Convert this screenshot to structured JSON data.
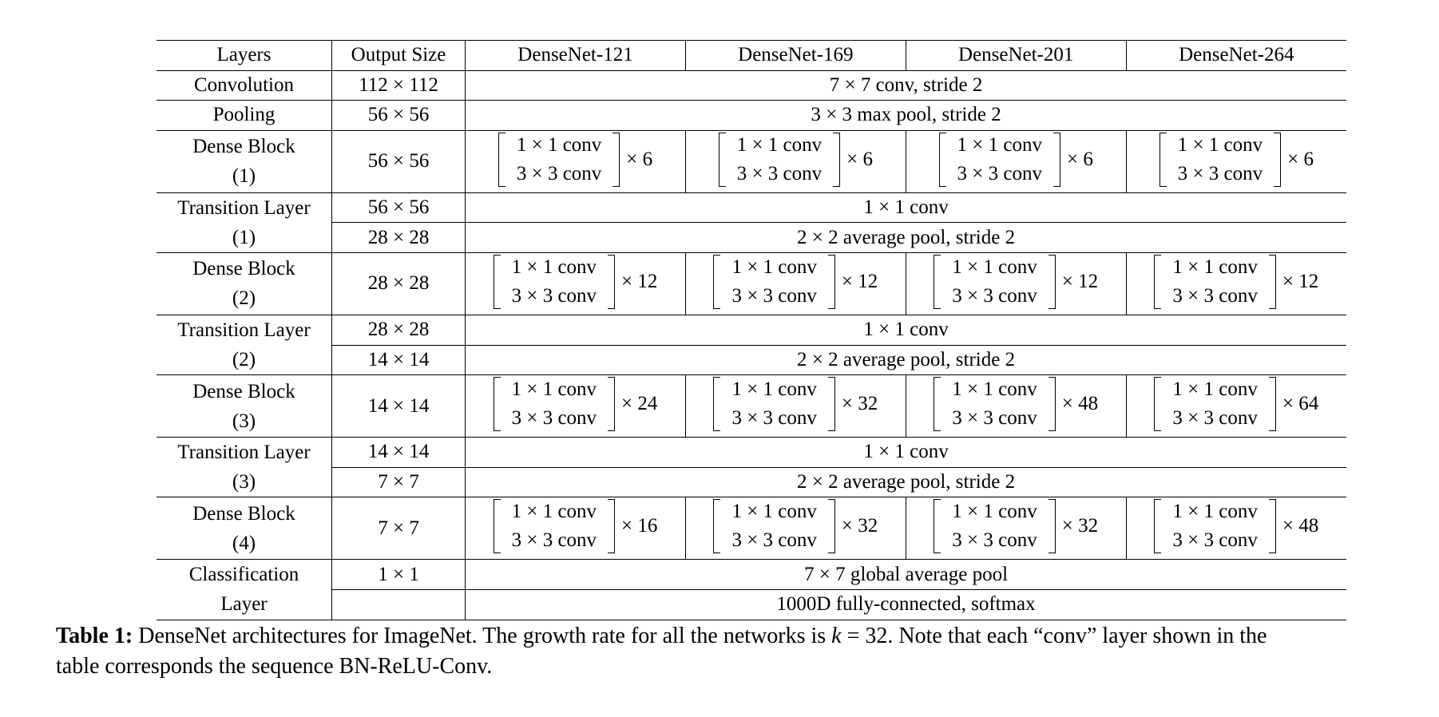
{
  "table": {
    "headers": [
      "Layers",
      "Output Size",
      "DenseNet-121",
      "DenseNet-169",
      "DenseNet-201",
      "DenseNet-264"
    ],
    "conv_layer": {
      "layer": "Convolution",
      "size": "112 × 112",
      "op": "7 × 7 conv, stride 2"
    },
    "pool_layer": {
      "layer": "Pooling",
      "size": "56 × 56",
      "op": "3 × 3 max pool, stride 2"
    },
    "block_line1": "1 × 1 conv",
    "block_line2": "3 × 3 conv",
    "dense_blocks": [
      {
        "name_l1": "Dense Block",
        "name_l2": "(1)",
        "size": "56 × 56",
        "reps": [
          "× 6",
          "× 6",
          "× 6",
          "× 6"
        ]
      },
      {
        "name_l1": "Dense Block",
        "name_l2": "(2)",
        "size": "28 × 28",
        "reps": [
          "× 12",
          "× 12",
          "× 12",
          "× 12"
        ]
      },
      {
        "name_l1": "Dense Block",
        "name_l2": "(3)",
        "size": "14 × 14",
        "reps": [
          "× 24",
          "× 32",
          "× 48",
          "× 64"
        ]
      },
      {
        "name_l1": "Dense Block",
        "name_l2": "(4)",
        "size": "7 × 7",
        "reps": [
          "× 16",
          "× 32",
          "× 32",
          "× 48"
        ]
      }
    ],
    "transitions": [
      {
        "name_l1": "Transition Layer",
        "name_l2": "(1)",
        "size1": "56 × 56",
        "op1": "1 × 1 conv",
        "size2": "28 × 28",
        "op2": "2 × 2 average pool, stride 2"
      },
      {
        "name_l1": "Transition Layer",
        "name_l2": "(2)",
        "size1": "28 × 28",
        "op1": "1 × 1 conv",
        "size2": "14 × 14",
        "op2": "2 × 2 average pool, stride 2"
      },
      {
        "name_l1": "Transition Layer",
        "name_l2": "(3)",
        "size1": "14 × 14",
        "op1": "1 × 1 conv",
        "size2": "7 × 7",
        "op2": "2 × 2 average pool, stride 2"
      }
    ],
    "classification": {
      "name_l1": "Classification",
      "name_l2": "Layer",
      "size1": "1 × 1",
      "op1": "7 × 7 global average pool",
      "size2": "",
      "op2": "1000D fully-connected, softmax"
    }
  },
  "caption": {
    "label": "Table 1:",
    "text_part1": " DenseNet architectures for ImageNet. The growth rate for all the networks is ",
    "math_var": "k",
    "text_part2": " = 32. Note that each “conv” layer shown in the",
    "line2": "table corresponds the sequence BN-ReLU-Conv."
  }
}
